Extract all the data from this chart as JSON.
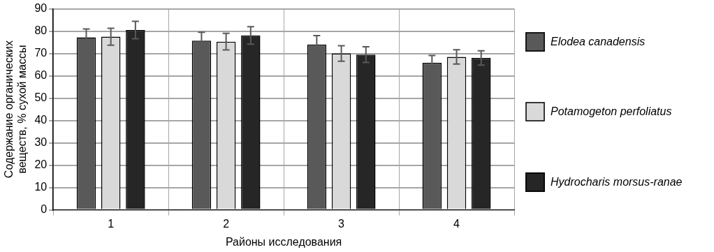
{
  "chart_data": {
    "type": "bar",
    "xlabel": "Районы исследования",
    "ylabel": "Содержание органических веществ, % сухой массы",
    "categories": [
      "1",
      "2",
      "3",
      "4"
    ],
    "series": [
      {
        "name": "Elodea canadensis",
        "color": "#595959",
        "values": [
          77.2,
          75.7,
          74,
          65.8
        ],
        "errors": [
          3.8,
          3.8,
          4,
          3.3
        ]
      },
      {
        "name": "Potamogeton perfoliatus",
        "color": "#d9d9d9",
        "values": [
          77.5,
          75.3,
          70,
          68.5
        ],
        "errors": [
          3.8,
          3.7,
          3.5,
          3.2
        ]
      },
      {
        "name": "Hydrocharis morsus-ranae",
        "color": "#262626",
        "values": [
          80.5,
          78.1,
          69.5,
          68
        ],
        "errors": [
          3.9,
          3.9,
          3.5,
          3.2
        ]
      }
    ],
    "ylim": [
      0,
      90
    ],
    "yticks": [
      0,
      10,
      20,
      30,
      40,
      50,
      60,
      70,
      80,
      90
    ],
    "grid": true,
    "legend": "right"
  }
}
